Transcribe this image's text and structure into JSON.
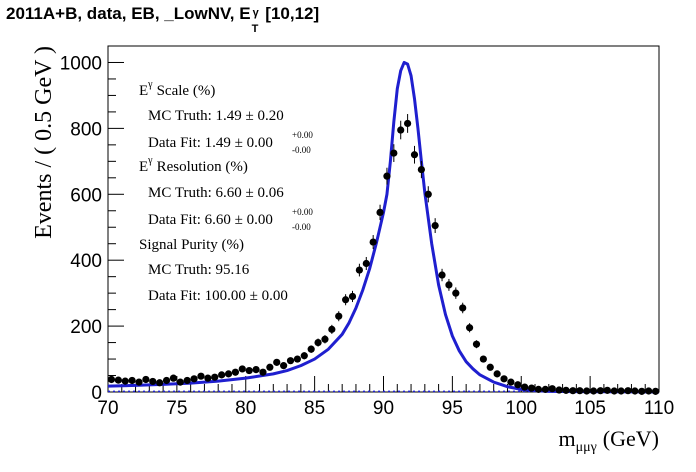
{
  "title": {
    "prefix": "2011A+B, data, EB, _LowNV, E",
    "sup": "γ",
    "sub": "T",
    "suffix": "[10,12]"
  },
  "legend": {
    "scale_heading": "Scale (%)",
    "scale_mc": "MC Truth: 1.49 ± 0.20",
    "scale_fit": "Data Fit: 1.49 ± 0.00",
    "resolution_heading": "Resolution (%)",
    "resolution_mc": "MC Truth: 6.60 ± 0.06",
    "resolution_fit": "Data Fit: 6.60 ± 0.00",
    "err_up": "+0.00",
    "err_down": "-0.00",
    "e_letter": "E",
    "gamma": "γ",
    "purity_heading": "Signal Purity (%)",
    "purity_mc": "MC Truth: 95.16",
    "purity_fit": "Data Fit: 100.00 ± 0.00"
  },
  "chart_data": {
    "type": "scatter",
    "xlabel": "m",
    "xlabel_sub": "μμγ",
    "xlabel_unit": "(GeV)",
    "ylabel": "Events / ( 0.5 GeV )",
    "xlim": [
      70,
      110
    ],
    "ylim": [
      0,
      1050
    ],
    "xticks": [
      "70",
      "75",
      "80",
      "85",
      "90",
      "95",
      "100",
      "105",
      "110"
    ],
    "yticks": [
      "0",
      "200",
      "400",
      "600",
      "800",
      "1000"
    ],
    "series": [
      {
        "kind": "points",
        "x": [
          70.25,
          70.75,
          71.25,
          71.75,
          72.25,
          72.75,
          73.25,
          73.75,
          74.25,
          74.75,
          75.25,
          75.75,
          76.25,
          76.75,
          77.25,
          77.75,
          78.25,
          78.75,
          79.25,
          79.75,
          80.25,
          80.75,
          81.25,
          81.75,
          82.25,
          82.75,
          83.25,
          83.75,
          84.25,
          84.75,
          85.25,
          85.75,
          86.25,
          86.75,
          87.25,
          87.75,
          88.25,
          88.75,
          89.25,
          89.75,
          90.25,
          90.75,
          91.25,
          91.75,
          92.25,
          92.75,
          93.25,
          93.75,
          94.25,
          94.75,
          95.25,
          95.75,
          96.25,
          96.75,
          97.25,
          97.75,
          98.25,
          98.75,
          99.25,
          99.75,
          100.25,
          100.75,
          101.25,
          101.75,
          102.25,
          102.75,
          103.25,
          103.75,
          104.25,
          104.75,
          105.25,
          105.75,
          106.25,
          106.75,
          107.25,
          107.75,
          108.25,
          108.75,
          109.25,
          109.75
        ],
        "y": [
          38,
          36,
          33,
          35,
          30,
          38,
          32,
          28,
          35,
          42,
          30,
          35,
          40,
          48,
          42,
          45,
          52,
          55,
          60,
          70,
          65,
          68,
          60,
          75,
          90,
          80,
          95,
          100,
          110,
          130,
          150,
          160,
          190,
          230,
          280,
          290,
          370,
          390,
          455,
          545,
          655,
          725,
          795,
          815,
          720,
          675,
          600,
          505,
          355,
          325,
          300,
          255,
          195,
          145,
          100,
          75,
          55,
          40,
          30,
          22,
          15,
          12,
          8,
          8,
          10,
          6,
          5,
          4,
          4,
          3,
          3,
          4,
          5,
          3,
          3,
          4,
          3,
          2,
          3,
          2
        ]
      },
      {
        "kind": "curve",
        "x": [
          70,
          72,
          74,
          76,
          78,
          80,
          82,
          83,
          84,
          85,
          86,
          87,
          87.5,
          88,
          88.5,
          89,
          89.5,
          90,
          90.25,
          90.5,
          90.75,
          91,
          91.25,
          91.5,
          91.75,
          92,
          92.25,
          92.5,
          92.75,
          93,
          93.5,
          94,
          94.5,
          95,
          95.5,
          96,
          96.5,
          97,
          98,
          99,
          100,
          101,
          102,
          104,
          110
        ],
        "y": [
          18,
          20,
          23,
          27,
          33,
          42,
          55,
          65,
          80,
          100,
          130,
          175,
          210,
          255,
          310,
          375,
          455,
          545,
          600,
          700,
          820,
          920,
          975,
          1000,
          995,
          960,
          890,
          800,
          700,
          605,
          450,
          325,
          235,
          170,
          125,
          92,
          70,
          52,
          30,
          16,
          8,
          4,
          2,
          1,
          0
        ]
      }
    ]
  }
}
